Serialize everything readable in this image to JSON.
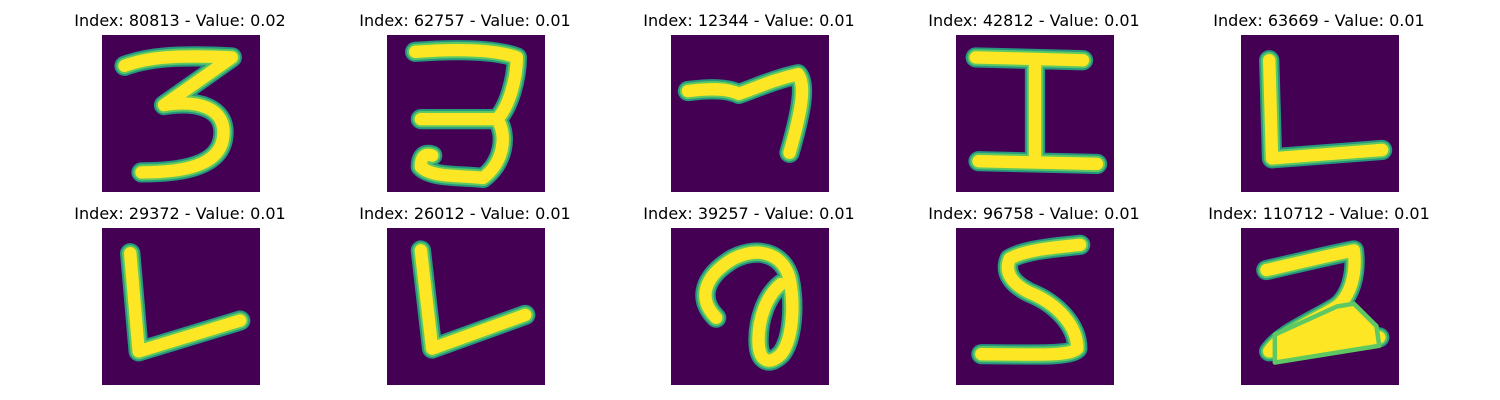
{
  "figure": {
    "colors": {
      "background": "#440154",
      "stroke": "#fde725",
      "halo": "#22a884",
      "mid": "#5ec962"
    },
    "panels": [
      {
        "title": "Index: 80813 - Value: 0.02"
      },
      {
        "title": "Index: 62757 - Value: 0.01"
      },
      {
        "title": "Index: 12344 - Value: 0.01"
      },
      {
        "title": "Index: 42812 - Value: 0.01"
      },
      {
        "title": "Index: 63669 - Value: 0.01"
      },
      {
        "title": "Index: 29372 - Value: 0.01"
      },
      {
        "title": "Index: 26012 - Value: 0.01"
      },
      {
        "title": "Index: 39257 - Value: 0.01"
      },
      {
        "title": "Index: 96758 - Value: 0.01"
      },
      {
        "title": "Index: 110712 - Value: 0.01"
      }
    ]
  }
}
